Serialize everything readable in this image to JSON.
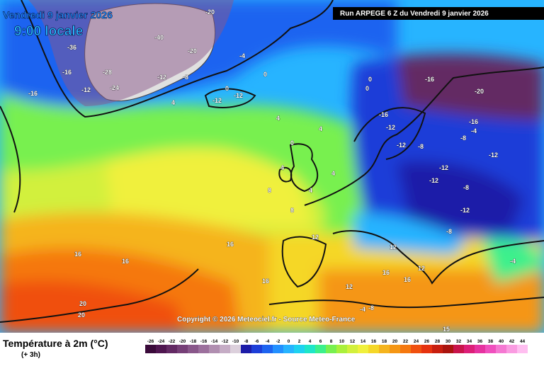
{
  "header": {
    "date": "Vendredi 9 janvier 2026",
    "time": "9:00 locale",
    "run": "Run ARPEGE 6 Z du Vendredi 9 janvier 2026"
  },
  "copyright": "Copyright © 2026 Meteociel.fr - Source Meteo-France",
  "legend": {
    "title": "Température à 2m (°C)",
    "subtitle": "(+ 3h)",
    "ticks": [
      -26,
      -24,
      -22,
      -20,
      -18,
      -16,
      -14,
      -12,
      -10,
      -8,
      -6,
      -4,
      -2,
      0,
      2,
      4,
      6,
      8,
      10,
      12,
      14,
      16,
      18,
      20,
      22,
      24,
      26,
      28,
      30,
      32,
      34,
      36,
      38,
      40,
      42,
      44
    ],
    "colors": [
      "#3a0a3a",
      "#4f1650",
      "#632a64",
      "#763f77",
      "#89578a",
      "#9c709d",
      "#b08eb0",
      "#c5acc5",
      "#dcd0dc",
      "#1c1ca8",
      "#1d3ed8",
      "#1e64f0",
      "#2390ff",
      "#27b4ff",
      "#1ed2f0",
      "#1ee6c8",
      "#3cf08c",
      "#78f050",
      "#aaf03c",
      "#d2f03c",
      "#f0f03c",
      "#f5d728",
      "#f5b41e",
      "#f59614",
      "#f5780f",
      "#f0500f",
      "#e6320f",
      "#c81e0f",
      "#aa140f",
      "#c8144b",
      "#dc1e78",
      "#e632a0",
      "#f050be",
      "#f578d2",
      "#fa9be1",
      "#ffbef0"
    ]
  },
  "map_labels": [
    "-40",
    "-36",
    "-28",
    "-24",
    "-16",
    "-20",
    "-12",
    "-16",
    "-20",
    "-12",
    "-8",
    "-4",
    "0",
    "0",
    "-12",
    "-12",
    "4",
    "4",
    "4",
    "0",
    "4",
    "4",
    "8",
    "4",
    "8",
    "0",
    "0",
    "-16",
    "-12",
    "-12",
    "-8",
    "-16",
    "-20",
    "-16",
    "-12",
    "-8",
    "-12",
    "-8",
    "-4",
    "-12",
    "-12",
    "-8",
    "-4",
    "16",
    "16",
    "16",
    "12",
    "12",
    "16",
    "20",
    "20",
    "12",
    "16",
    "-8",
    "-4",
    "16",
    "12",
    "15"
  ]
}
